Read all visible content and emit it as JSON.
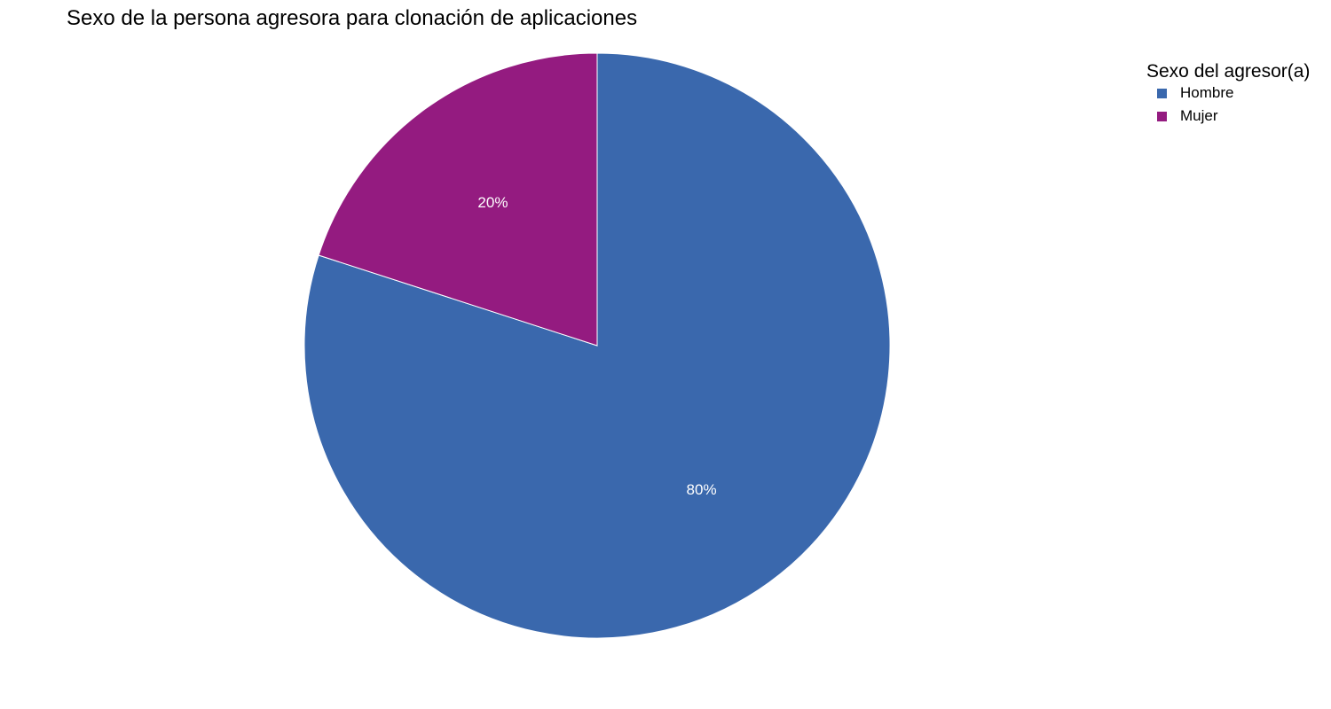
{
  "chart_data": {
    "type": "pie",
    "title": "Sexo de la persona agresora para clonación de aplicaciones",
    "legend_title": "Sexo del agresor(a)",
    "legend_position": "top-right",
    "slices": [
      {
        "label": "Hombre",
        "value": 80,
        "display": "80%",
        "color": "#3a68ad"
      },
      {
        "label": "Mujer",
        "value": 20,
        "display": "20%",
        "color": "#941b80"
      }
    ]
  }
}
